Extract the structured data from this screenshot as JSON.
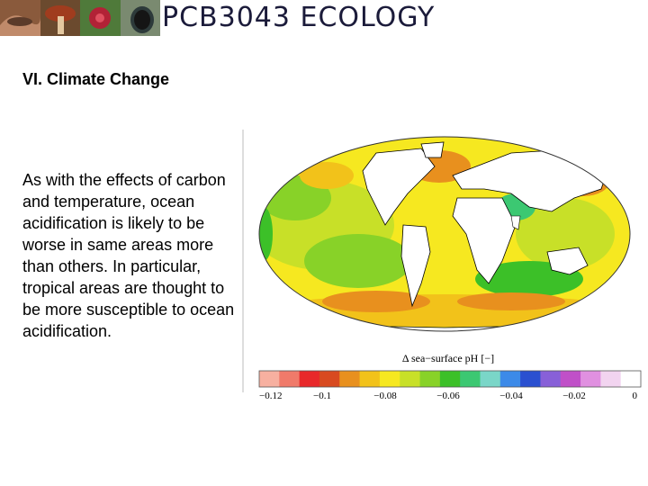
{
  "header": {
    "course_title": "PCB3043  ECOLOGY",
    "photo_strip": [
      {
        "name": "lizard-photo",
        "colors": [
          "#8a5a3c",
          "#c08a6a",
          "#5b3b2a"
        ]
      },
      {
        "name": "mushroom-photo",
        "colors": [
          "#a03c1e",
          "#e4a070",
          "#6b4a2e"
        ]
      },
      {
        "name": "red-flower-photo",
        "colors": [
          "#b22236",
          "#4f7a3a",
          "#e05060"
        ]
      },
      {
        "name": "beetle-photo",
        "colors": [
          "#2d3a3a",
          "#7a8a70",
          "#151515"
        ]
      }
    ]
  },
  "slide": {
    "section_heading": "VI.  Climate Change",
    "body_text": "As with the effects of carbon and temperature, ocean acidification is likely to be worse in same areas more than others.  In particular, tropical areas are thought to be more susceptible to ocean acidification."
  },
  "figure": {
    "colorbar_label": "Δ sea−surface pH [−]",
    "colorbar_ticks": [
      "−0.12",
      "−0.1",
      "−0.08",
      "−0.06",
      "−0.04",
      "−0.02",
      "0"
    ],
    "colorbar_colors": [
      "#f7b0a0",
      "#f07a6a",
      "#e8282a",
      "#d84a20",
      "#e8901e",
      "#f2c21a",
      "#f6e820",
      "#c8e028",
      "#88d228",
      "#3cc028",
      "#3cc872",
      "#7ad6c8",
      "#3c8ae8",
      "#2a50d0",
      "#8860d8",
      "#c050c8",
      "#e090e0",
      "#f2d4f0",
      "#ffffff"
    ],
    "ocean_palette": [
      "#f6e820",
      "#c8e028",
      "#88d228",
      "#3cc028",
      "#3cc872",
      "#f2c21a",
      "#e8901e"
    ]
  }
}
